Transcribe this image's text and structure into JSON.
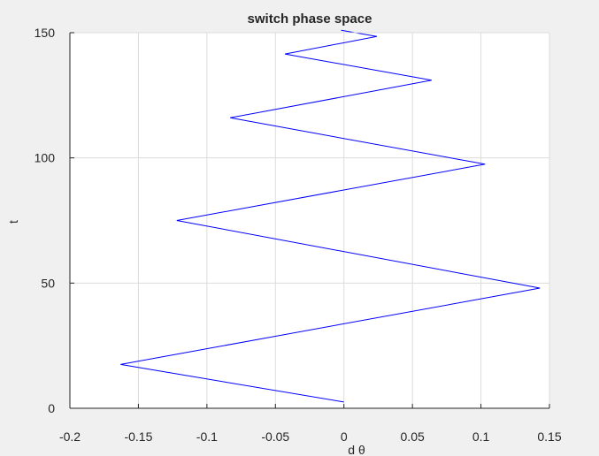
{
  "chart_data": {
    "type": "line",
    "title": "switch phase space",
    "xlabel": "d θ",
    "ylabel": "t",
    "xlim": [
      -0.2,
      0.15
    ],
    "ylim": [
      0,
      150
    ],
    "xticks": [
      -0.2,
      -0.15,
      -0.1,
      -0.05,
      0,
      0.05,
      0.1,
      0.15
    ],
    "xtick_labels": [
      "-0.2",
      "-0.15",
      "-0.1",
      "-0.05",
      "0",
      "0.05",
      "0.1",
      "0.15"
    ],
    "yticks": [
      0,
      50,
      100,
      150
    ],
    "ytick_labels": [
      "0",
      "50",
      "100",
      "150"
    ],
    "grid": true,
    "series": [
      {
        "color": "#0000ff",
        "x": [
          0.0,
          -0.163,
          0.143,
          -0.122,
          0.103,
          -0.083,
          0.064,
          -0.043,
          0.024,
          -0.002
        ],
        "y": [
          2.5,
          17.5,
          48.0,
          75.0,
          97.5,
          116.0,
          131.0,
          141.5,
          148.5,
          151.0
        ]
      }
    ]
  },
  "colors": {
    "background": "#f0f0f0",
    "plot_area": "#ffffff",
    "grid": "#dcdcdc",
    "axis": "#262626",
    "line": "#0000ff"
  }
}
